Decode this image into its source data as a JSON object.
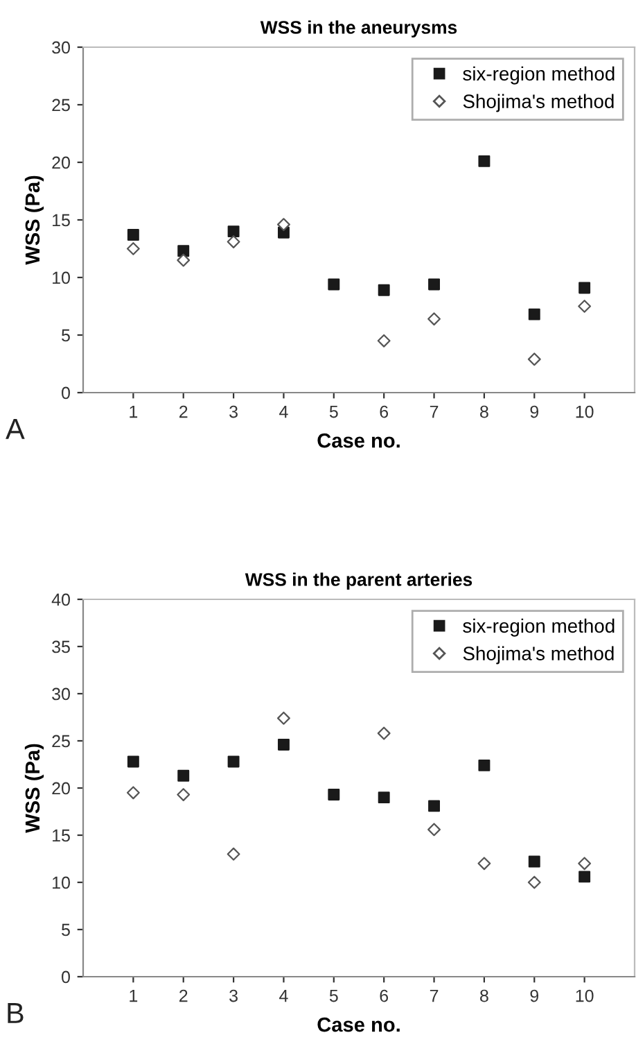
{
  "chart_data": [
    {
      "type": "scatter",
      "title": "WSS in the aneurysms",
      "xlabel": "Case no.",
      "ylabel": "WSS (Pa)",
      "annotations": [
        "A"
      ],
      "categories": [
        "1",
        "2",
        "3",
        "4",
        "5",
        "6",
        "7",
        "8",
        "9",
        "10"
      ],
      "ylim": [
        0,
        30
      ],
      "yticks": [
        0,
        5,
        10,
        15,
        20,
        25,
        30
      ],
      "grid": false,
      "legend": "top right",
      "series": [
        {
          "name": "six-region method",
          "color": "#1a1a1a",
          "marker": "square",
          "values": [
            13.7,
            12.3,
            14.0,
            13.9,
            9.4,
            8.9,
            9.4,
            20.1,
            6.8,
            9.1
          ]
        },
        {
          "name": "Shojima's method",
          "color": "#555555",
          "marker": "diamond",
          "values": [
            12.5,
            11.5,
            13.1,
            14.6,
            null,
            4.5,
            6.4,
            null,
            2.9,
            7.5
          ]
        }
      ]
    },
    {
      "type": "scatter",
      "title": "WSS in the parent arteries",
      "xlabel": "Case no.",
      "ylabel": "WSS (Pa)",
      "annotations": [
        "B"
      ],
      "categories": [
        "1",
        "2",
        "3",
        "4",
        "5",
        "6",
        "7",
        "8",
        "9",
        "10"
      ],
      "ylim": [
        0,
        40
      ],
      "yticks": [
        0,
        5,
        10,
        15,
        20,
        25,
        30,
        35,
        40
      ],
      "grid": false,
      "legend": "top right",
      "series": [
        {
          "name": "six-region method",
          "color": "#1a1a1a",
          "marker": "square",
          "values": [
            22.8,
            21.3,
            22.8,
            24.6,
            19.3,
            19.0,
            18.1,
            22.4,
            12.2,
            10.6
          ]
        },
        {
          "name": "Shojima's method",
          "color": "#555555",
          "marker": "diamond",
          "values": [
            19.5,
            19.3,
            13.0,
            27.4,
            null,
            25.8,
            15.6,
            12.0,
            10.0,
            12.0
          ]
        }
      ]
    }
  ]
}
